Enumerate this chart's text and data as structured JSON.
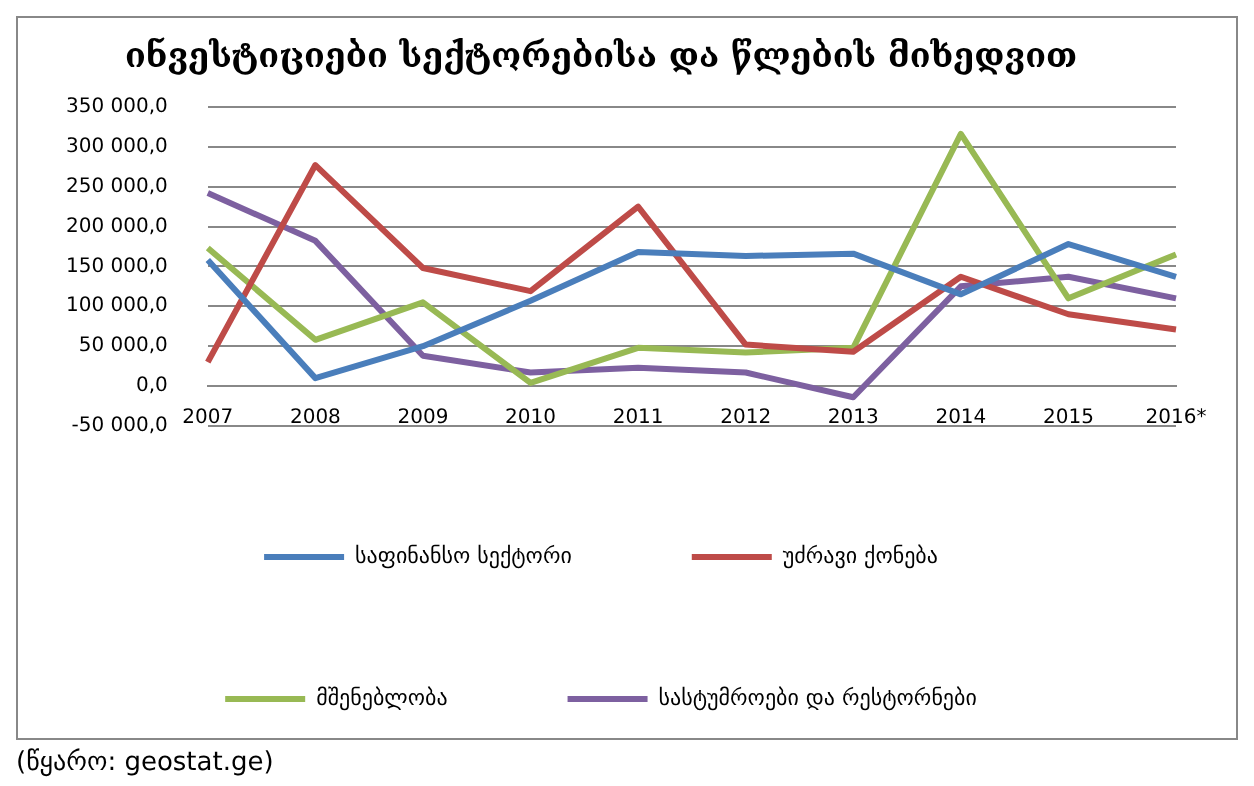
{
  "chart_data": {
    "type": "line",
    "title": "ინვესტიციები სექტორებისა და წლების მიხედვით",
    "categories": [
      "2007",
      "2008",
      "2009",
      "2010",
      "2011",
      "2012",
      "2013",
      "2014",
      "2015",
      "2016*"
    ],
    "series": [
      {
        "name": "საფინანსო სექტორი",
        "color": "#4a7ebb",
        "values": [
          158000,
          10000,
          50000,
          107000,
          168000,
          163000,
          166000,
          115000,
          178000,
          137000
        ]
      },
      {
        "name": "უძრავი ქონება",
        "color": "#be4b48",
        "values": [
          30000,
          277000,
          148000,
          119000,
          225000,
          52000,
          43000,
          137000,
          90000,
          71000
        ]
      },
      {
        "name": "მშენებლობა",
        "color": "#98b954",
        "values": [
          173000,
          58000,
          105000,
          4000,
          48000,
          42000,
          48000,
          316000,
          110000,
          165000
        ]
      },
      {
        "name": "სასტუმროები და რესტორნები",
        "color": "#7d60a0",
        "values": [
          242000,
          182000,
          38000,
          17000,
          23000,
          17000,
          -14000,
          125000,
          137000,
          110000
        ]
      }
    ],
    "ylim": [
      -50000,
      350000
    ],
    "yticks": [
      {
        "value": -50000,
        "label": "-50 000,0"
      },
      {
        "value": 0,
        "label": "0,0"
      },
      {
        "value": 50000,
        "label": "50 000,0"
      },
      {
        "value": 100000,
        "label": "100 000,0"
      },
      {
        "value": 150000,
        "label": "150 000,0"
      },
      {
        "value": 200000,
        "label": "200 000,0"
      },
      {
        "value": 250000,
        "label": "250 000,0"
      },
      {
        "value": 300000,
        "label": "300 000,0"
      },
      {
        "value": 350000,
        "label": "350 000,0"
      }
    ],
    "grid": "y",
    "legend": "bottom",
    "marker": "none",
    "line_style": "solid",
    "annotations": [
      "(წყარო: geostat.ge)"
    ]
  }
}
